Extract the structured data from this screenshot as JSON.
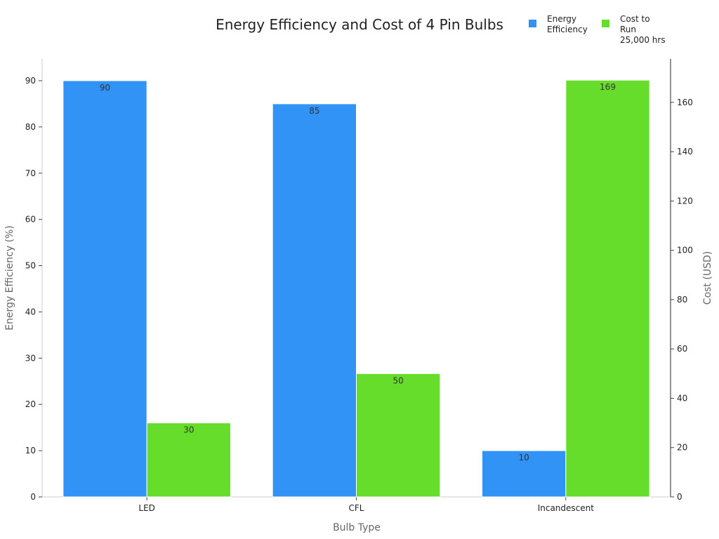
{
  "chart_data": {
    "type": "bar",
    "title": "Energy Efficiency and Cost of 4 Pin Bulbs",
    "xlabel": "Bulb Type",
    "ylabel": "Energy Efficiency (%)",
    "y2label": "Cost (USD)",
    "categories": [
      "LED",
      "CFL",
      "Incandescent"
    ],
    "series": [
      {
        "name": "Energy Efficiency",
        "axis": "left",
        "color": "#3193f5",
        "values": [
          90,
          85,
          10
        ]
      },
      {
        "name": "Cost to Run 25,000 hrs",
        "axis": "right",
        "color": "#66dd2a",
        "values": [
          30,
          50,
          169
        ]
      }
    ],
    "ylim": [
      0,
      94.7
    ],
    "y2lim": [
      0,
      177.6
    ],
    "yticks": [
      0,
      10,
      20,
      30,
      40,
      50,
      60,
      70,
      80,
      90
    ],
    "y2ticks": [
      0,
      20,
      40,
      60,
      80,
      100,
      120,
      140,
      160
    ],
    "grid": false,
    "legend_position": "top-right",
    "legend_lines": [
      [
        "Energy",
        "Efficiency"
      ],
      [
        "Cost to",
        "Run",
        "25,000 hrs"
      ]
    ]
  }
}
